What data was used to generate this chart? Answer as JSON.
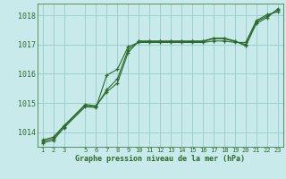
{
  "background_color": "#c8eaea",
  "grid_color": "#9ecece",
  "line_color": "#2d6a2d",
  "xlabel": "Graphe pression niveau de la mer (hPa)",
  "xlabel_color": "#2d6a2d",
  "x_ticks": [
    1,
    2,
    3,
    5,
    6,
    7,
    8,
    9,
    10,
    11,
    12,
    13,
    14,
    15,
    16,
    17,
    18,
    19,
    20,
    21,
    22,
    23
  ],
  "ylim": [
    1013.5,
    1018.4
  ],
  "y_ticks": [
    1014,
    1015,
    1016,
    1017,
    1018
  ],
  "figsize": [
    3.2,
    2.0
  ],
  "dpi": 100,
  "series1_x": [
    1,
    2,
    3,
    5,
    6,
    7,
    8,
    9,
    10,
    11,
    12,
    13,
    14,
    15,
    16,
    17,
    18,
    19,
    20,
    21,
    22,
    23
  ],
  "series1_y": [
    1013.63,
    1013.72,
    1014.15,
    1014.87,
    1014.84,
    1015.95,
    1016.15,
    1016.92,
    1017.07,
    1017.07,
    1017.07,
    1017.07,
    1017.07,
    1017.07,
    1017.07,
    1017.12,
    1017.12,
    1017.07,
    1017.07,
    1017.82,
    1018.02,
    1018.12
  ],
  "series2_x": [
    1,
    2,
    3,
    5,
    6,
    7,
    8,
    9,
    10,
    11,
    12,
    13,
    14,
    15,
    16,
    17,
    18,
    19,
    20,
    21,
    22,
    23
  ],
  "series2_y": [
    1013.68,
    1013.78,
    1014.18,
    1014.92,
    1014.87,
    1015.45,
    1015.82,
    1016.82,
    1017.1,
    1017.1,
    1017.1,
    1017.1,
    1017.1,
    1017.1,
    1017.1,
    1017.2,
    1017.2,
    1017.1,
    1017.0,
    1017.78,
    1017.97,
    1018.18
  ],
  "series3_x": [
    1,
    2,
    3,
    5,
    6,
    7,
    8,
    9,
    10,
    11,
    12,
    13,
    14,
    15,
    16,
    17,
    18,
    19,
    20,
    21,
    22,
    23
  ],
  "series3_y": [
    1013.73,
    1013.83,
    1014.22,
    1014.95,
    1014.9,
    1015.38,
    1015.68,
    1016.72,
    1017.12,
    1017.12,
    1017.12,
    1017.12,
    1017.12,
    1017.12,
    1017.12,
    1017.22,
    1017.22,
    1017.12,
    1016.95,
    1017.72,
    1017.92,
    1018.22
  ]
}
